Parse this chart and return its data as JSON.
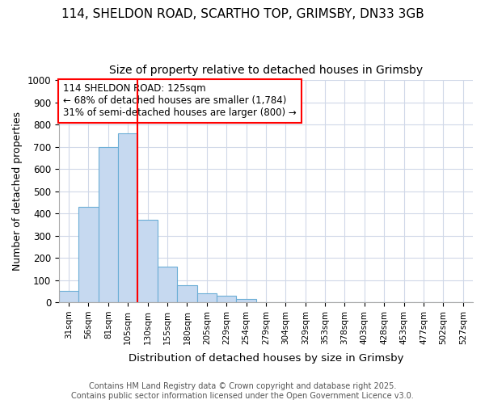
{
  "title_line1": "114, SHELDON ROAD, SCARTHO TOP, GRIMSBY, DN33 3GB",
  "title_line2": "Size of property relative to detached houses in Grimsby",
  "xlabel": "Distribution of detached houses by size in Grimsby",
  "ylabel": "Number of detached properties",
  "categories": [
    "31sqm",
    "56sqm",
    "81sqm",
    "105sqm",
    "130sqm",
    "155sqm",
    "180sqm",
    "205sqm",
    "229sqm",
    "254sqm",
    "279sqm",
    "304sqm",
    "329sqm",
    "353sqm",
    "378sqm",
    "403sqm",
    "428sqm",
    "453sqm",
    "477sqm",
    "502sqm",
    "527sqm"
  ],
  "values": [
    50,
    430,
    700,
    760,
    370,
    160,
    75,
    40,
    30,
    15,
    0,
    0,
    0,
    0,
    0,
    0,
    0,
    0,
    0,
    0,
    0
  ],
  "bar_color": "#c6d9f0",
  "bar_edge_color": "#6baed6",
  "red_line_index": 4,
  "annotation_text_line1": "114 SHELDON ROAD: 125sqm",
  "annotation_text_line2": "← 68% of detached houses are smaller (1,784)",
  "annotation_text_line3": "31% of semi-detached houses are larger (800) →",
  "ylim": [
    0,
    1000
  ],
  "yticks": [
    0,
    100,
    200,
    300,
    400,
    500,
    600,
    700,
    800,
    900,
    1000
  ],
  "background_color": "#ffffff",
  "grid_color": "#d0d8e8",
  "title_fontsize": 11,
  "subtitle_fontsize": 10,
  "footer_line1": "Contains HM Land Registry data © Crown copyright and database right 2025.",
  "footer_line2": "Contains public sector information licensed under the Open Government Licence v3.0."
}
